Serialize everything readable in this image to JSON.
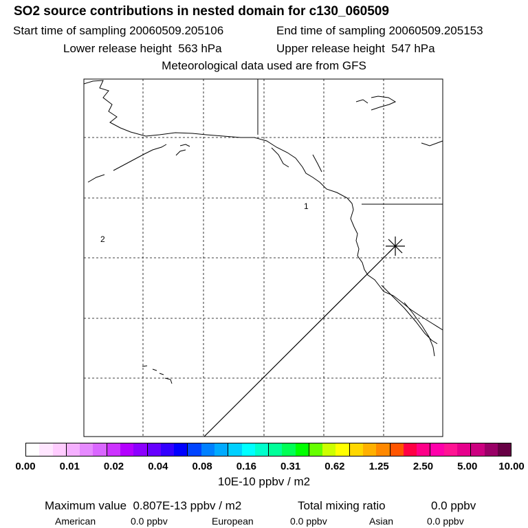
{
  "header": {
    "title": "SO2 source contributions in nested domain for c130_060509",
    "start_time": "Start time of sampling 20060509.205106",
    "end_time": "End time of sampling 20060509.205153",
    "lower_height": "Lower release height  563 hPa",
    "upper_height": "Upper release height  547 hPa",
    "met_data": "Meteorological data used are from GFS"
  },
  "map": {
    "region_labels": [
      "1",
      "2"
    ],
    "source_marker": "asterisk",
    "line_color": "#000000"
  },
  "colorbar": {
    "colors": [
      "#ffffff",
      "#ffe6ff",
      "#ffccff",
      "#f5b0ff",
      "#e68aff",
      "#d966ff",
      "#cc33ff",
      "#b300ff",
      "#8c00ff",
      "#6600ff",
      "#3300ff",
      "#0000ff",
      "#0044ff",
      "#0080ff",
      "#00aaff",
      "#00d0ff",
      "#00ffff",
      "#00ffcc",
      "#00ff99",
      "#00ff55",
      "#00ff00",
      "#66ff00",
      "#ccff00",
      "#ffff00",
      "#ffd700",
      "#ffb000",
      "#ff8800",
      "#ff5500",
      "#ff0044",
      "#ff0088",
      "#ff00aa",
      "#ff1493",
      "#e6008c",
      "#cc0080",
      "#990066",
      "#660044"
    ],
    "ticks": [
      "0.00",
      "0.01",
      "0.02",
      "0.04",
      "0.08",
      "0.16",
      "0.31",
      "0.62",
      "1.25",
      "2.50",
      "5.00",
      "10.00"
    ],
    "units": "10E-10 ppbv / m2"
  },
  "summary": {
    "max_label": "Maximum value  0.807E-13 ppbv / m2",
    "total_label": "Total mixing ratio",
    "total_value": "0.0 ppbv",
    "regions": [
      {
        "name": "American",
        "value": "0.0 ppbv"
      },
      {
        "name": "European",
        "value": "0.0 ppbv"
      },
      {
        "name": "Asian",
        "value": "0.0 ppbv"
      }
    ]
  }
}
